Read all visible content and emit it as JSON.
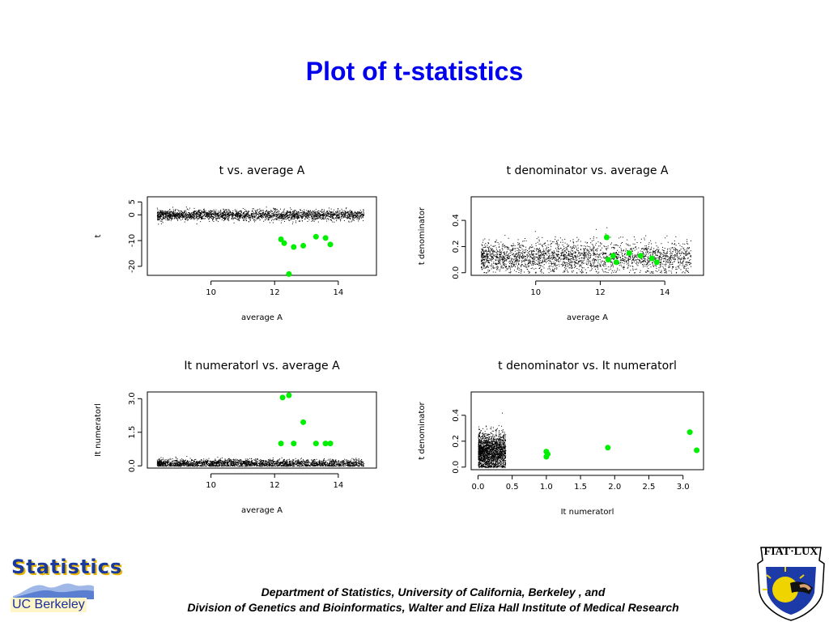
{
  "slide": {
    "title": "Plot of t-statistics",
    "footer_line1": "Department of Statistics, University of California, Berkeley , and",
    "footer_line2": "Division of Genetics and Bioinformatics, Walter and Eliza Hall Institute of Medical Research"
  },
  "logos": {
    "stats_word": "Statistics",
    "uc_label": "UC Berkeley",
    "seal_motto": "FIAT·LUX"
  },
  "colors": {
    "title": "#0000ee",
    "highlight": "#00ee00",
    "points": "#000000"
  },
  "chart_data": [
    {
      "type": "scatter",
      "title": "t vs. average A",
      "xlabel": "average A",
      "ylabel": "t",
      "xlim": [
        8,
        15.2
      ],
      "ylim": [
        -23.5,
        7
      ],
      "xticks": [
        10,
        12,
        14
      ],
      "yticks": [
        -20,
        -10,
        0,
        5
      ],
      "cloud": {
        "x_range": [
          8.3,
          14.8
        ],
        "center": 0,
        "spread": 1.0,
        "n": 2500
      },
      "highlighted": {
        "x": [
          12.2,
          12.3,
          12.45,
          12.6,
          12.9,
          13.3,
          13.6,
          13.75
        ],
        "y": [
          -9.5,
          -11.0,
          -23.0,
          -12.5,
          -12.0,
          -8.5,
          -9.0,
          -11.5
        ]
      }
    },
    {
      "type": "scatter",
      "title": "t denominator vs. average A",
      "xlabel": "average A",
      "ylabel": "t denominator",
      "xlim": [
        8,
        15.2
      ],
      "ylim": [
        -0.02,
        0.58
      ],
      "xticks": [
        10,
        12,
        14
      ],
      "yticks": [
        0.0,
        0.2,
        0.4
      ],
      "cloud": {
        "x_range": [
          8.3,
          14.8
        ],
        "center": 0.12,
        "spread": 0.06,
        "n": 2500
      },
      "highlighted": {
        "x": [
          12.2,
          12.25,
          12.4,
          12.5,
          12.9,
          13.25,
          13.6,
          13.75
        ],
        "y": [
          0.27,
          0.1,
          0.13,
          0.08,
          0.15,
          0.13,
          0.11,
          0.08
        ]
      }
    },
    {
      "type": "scatter",
      "title": "It numeratorl vs. average A",
      "xlabel": "average A",
      "ylabel": "It numeratorl",
      "xlim": [
        8,
        15.2
      ],
      "ylim": [
        -0.1,
        3.3
      ],
      "xticks": [
        10,
        12,
        14
      ],
      "yticks": [
        0.0,
        1.5,
        3.0
      ],
      "cloud": {
        "x_range": [
          8.3,
          14.8
        ],
        "center": 0.12,
        "spread": 0.09,
        "n": 2500
      },
      "highlighted": {
        "x": [
          12.2,
          12.25,
          12.45,
          12.6,
          12.9,
          13.3,
          13.6,
          13.75
        ],
        "y": [
          1.0,
          3.05,
          3.15,
          1.0,
          1.95,
          1.0,
          1.0,
          1.0
        ]
      }
    },
    {
      "type": "scatter",
      "title": "t denominator vs. It numeratorl",
      "xlabel": "It numeratorl",
      "ylabel": "t denominator",
      "xlim": [
        -0.1,
        3.3
      ],
      "ylim": [
        -0.02,
        0.58
      ],
      "xticks": [
        0.0,
        0.5,
        1.0,
        1.5,
        2.0,
        2.5,
        3.0
      ],
      "yticks": [
        0.0,
        0.2,
        0.4
      ],
      "cloud": {
        "x_range": [
          0.0,
          0.4
        ],
        "center": 0.12,
        "spread": 0.07,
        "n": 2000
      },
      "highlighted": {
        "x": [
          1.0,
          1.02,
          1.0,
          1.9,
          3.1,
          3.2
        ],
        "y": [
          0.12,
          0.1,
          0.08,
          0.15,
          0.27,
          0.13
        ]
      }
    }
  ]
}
